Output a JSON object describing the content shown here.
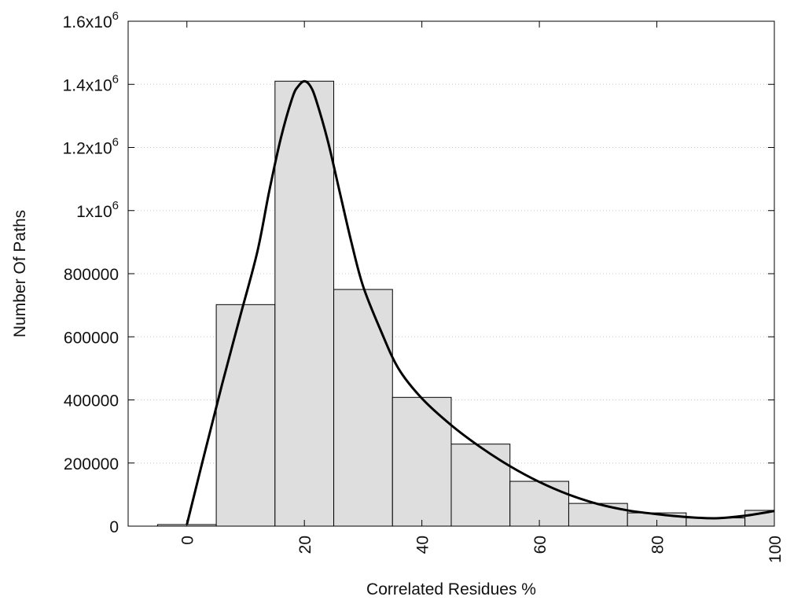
{
  "chart_data": {
    "type": "bar",
    "xlabel": "Correlated Residues %",
    "ylabel": "Number Of Paths",
    "xlim": [
      -10,
      100
    ],
    "ylim": [
      0,
      1600000
    ],
    "xticks": [
      {
        "value": 0,
        "label": "0"
      },
      {
        "value": 20,
        "label": "20"
      },
      {
        "value": 40,
        "label": "40"
      },
      {
        "value": 60,
        "label": "60"
      },
      {
        "value": 80,
        "label": "80"
      },
      {
        "value": 100,
        "label": "100"
      }
    ],
    "yticks": [
      {
        "value": 0,
        "label": "0",
        "sup": ""
      },
      {
        "value": 200000,
        "label": "200000",
        "sup": ""
      },
      {
        "value": 400000,
        "label": "400000",
        "sup": ""
      },
      {
        "value": 600000,
        "label": "600000",
        "sup": ""
      },
      {
        "value": 800000,
        "label": "800000",
        "sup": ""
      },
      {
        "value": 1000000,
        "label": "1x10",
        "sup": "6"
      },
      {
        "value": 1200000,
        "label": "1.2x10",
        "sup": "6"
      },
      {
        "value": 1400000,
        "label": "1.4x10",
        "sup": "6"
      },
      {
        "value": 1600000,
        "label": "1.6x10",
        "sup": "6"
      }
    ],
    "grid": "horizontal dotted",
    "bar_width": 10,
    "bars": [
      {
        "x": 0,
        "value": 5000
      },
      {
        "x": 10,
        "value": 702000
      },
      {
        "x": 20,
        "value": 1410000
      },
      {
        "x": 30,
        "value": 750000
      },
      {
        "x": 40,
        "value": 408000
      },
      {
        "x": 50,
        "value": 260000
      },
      {
        "x": 60,
        "value": 142000
      },
      {
        "x": 70,
        "value": 72000
      },
      {
        "x": 80,
        "value": 42000
      },
      {
        "x": 90,
        "value": 26000
      },
      {
        "x": 100,
        "value": 50000
      }
    ],
    "curve": [
      [
        0,
        5000
      ],
      [
        3,
        230000
      ],
      [
        6,
        450000
      ],
      [
        9,
        660000
      ],
      [
        12,
        870000
      ],
      [
        14,
        1060000
      ],
      [
        16,
        1230000
      ],
      [
        18,
        1360000
      ],
      [
        19,
        1395000
      ],
      [
        20,
        1410000
      ],
      [
        21,
        1395000
      ],
      [
        22,
        1350000
      ],
      [
        24,
        1220000
      ],
      [
        26,
        1060000
      ],
      [
        28,
        900000
      ],
      [
        30,
        760000
      ],
      [
        33,
        620000
      ],
      [
        36,
        500000
      ],
      [
        40,
        405000
      ],
      [
        45,
        320000
      ],
      [
        50,
        250000
      ],
      [
        55,
        190000
      ],
      [
        60,
        140000
      ],
      [
        65,
        100000
      ],
      [
        70,
        70000
      ],
      [
        75,
        50000
      ],
      [
        80,
        38000
      ],
      [
        85,
        29000
      ],
      [
        90,
        25000
      ],
      [
        95,
        33000
      ],
      [
        100,
        48000
      ]
    ],
    "colors": {
      "bar_fill": "#dedede",
      "bar_stroke": "#000000",
      "curve": "#000000",
      "grid": "#c8c8c8"
    }
  }
}
